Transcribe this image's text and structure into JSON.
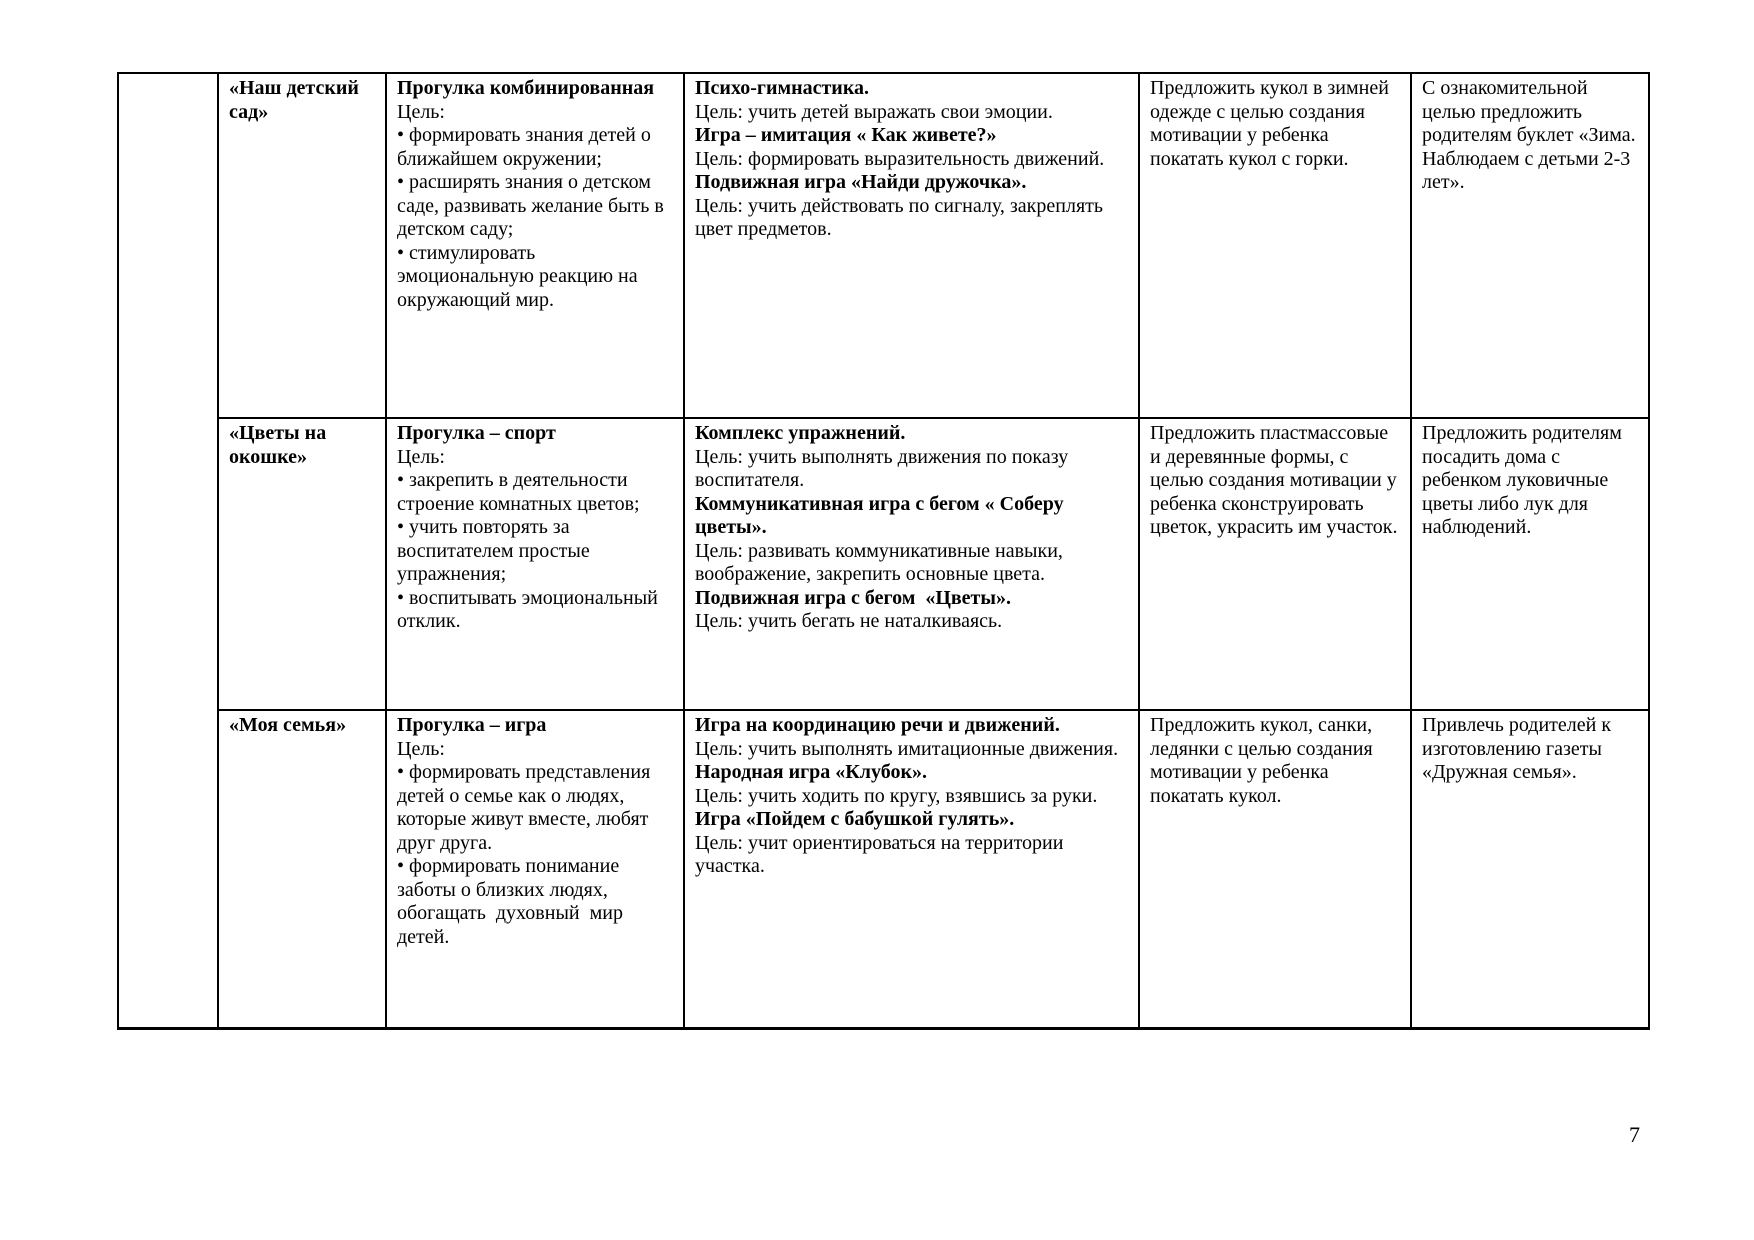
{
  "page": {
    "number": "7"
  },
  "table": {
    "rows": [
      {
        "topic": "«Наш детский сад»",
        "walk": [
          {
            "bold": true,
            "text": "Прогулка комбинированная"
          },
          {
            "bold": false,
            "text": "Цель:"
          },
          {
            "bold": false,
            "text": "• формировать знания детей о ближайшем окружении;"
          },
          {
            "bold": false,
            "text": "• расширять знания о детском саде, развивать желание быть в детском саду;"
          },
          {
            "bold": false,
            "text": "• стимулировать эмоциональную реакцию на окружающий мир."
          }
        ],
        "games": [
          {
            "bold": true,
            "text": "Психо-гимнастика."
          },
          {
            "bold": false,
            "text": "Цель: учить детей выражать свои эмоции."
          },
          {
            "bold": true,
            "text": "Игра – имитация « Как живете?»"
          },
          {
            "bold": false,
            "text": "Цель: формировать выразительность движений."
          },
          {
            "bold": true,
            "text": "Подвижная игра «Найди дружочка»."
          },
          {
            "bold": false,
            "text": "Цель: учить действовать по сигналу, закреплять цвет предметов."
          }
        ],
        "motivation": [
          {
            "bold": false,
            "text": "Предложить кукол в зимней одежде с целью создания мотивации у ребенка покатать кукол с горки."
          }
        ],
        "parents": [
          {
            "bold": false,
            "text": "С ознакомительной целью предложить родителям буклет «Зима. Наблюдаем с детьми 2-3 лет»."
          }
        ]
      },
      {
        "topic": "«Цветы на окошке»",
        "walk": [
          {
            "bold": true,
            "text": "Прогулка – спорт"
          },
          {
            "bold": false,
            "text": "Цель:"
          },
          {
            "bold": false,
            "text": "• закрепить в деятельности строение комнатных цветов;"
          },
          {
            "bold": false,
            "text": "• учить повторять за воспитателем простые упражнения;"
          },
          {
            "bold": false,
            "text": "• воспитывать эмоциональный отклик."
          }
        ],
        "games": [
          {
            "bold": true,
            "text": "Комплекс упражнений."
          },
          {
            "bold": false,
            "text": "Цель: учить выполнять движения по показу воспитателя."
          },
          {
            "bold": true,
            "text": "Коммуникативная игра с бегом « Соберу цветы»."
          },
          {
            "bold": false,
            "text": "Цель: развивать коммуникативные навыки, воображение, закрепить основные цвета."
          },
          {
            "bold": true,
            "text": "Подвижная игра с бегом  «Цветы»."
          },
          {
            "bold": false,
            "text": "Цель: учить бегать не наталкиваясь."
          }
        ],
        "motivation": [
          {
            "bold": false,
            "text": "Предложить пластмассовые и деревянные формы, с целью создания мотивации у ребенка сконструировать цветок, украсить им участок."
          }
        ],
        "parents": [
          {
            "bold": false,
            "text": "Предложить родителям посадить дома с ребенком луковичные цветы либо лук для наблюдений."
          }
        ]
      },
      {
        "topic": "«Моя семья»",
        "walk": [
          {
            "bold": true,
            "text": "Прогулка – игра"
          },
          {
            "bold": false,
            "text": "Цель:"
          },
          {
            "bold": false,
            "text": "• формировать представления детей о семье как о людях, которые живут вместе, любят друг друга."
          },
          {
            "bold": false,
            "text": "• формировать понимание заботы о близких людях, обогащать  духовный  мир детей."
          }
        ],
        "games": [
          {
            "bold": true,
            "text": "Игра на координацию речи и движений."
          },
          {
            "bold": false,
            "text": "Цель: учить выполнять имитационные движения."
          },
          {
            "bold": true,
            "text": "Народная игра «Клубок»."
          },
          {
            "bold": false,
            "text": "Цель: учить ходить по кругу, взявшись за руки."
          },
          {
            "bold": true,
            "text": "Игра «Пойдем с бабушкой гулять»."
          },
          {
            "bold": false,
            "text": "Цель: учит ориентироваться на территории участка."
          }
        ],
        "motivation": [
          {
            "bold": false,
            "text": "Предложить кукол, санки, ледянки с целью создания мотивации у ребенка покатать кукол."
          }
        ],
        "parents": [
          {
            "bold": false,
            "text": "Привлечь родителей к изготовлению газеты «Дружная семья»."
          }
        ]
      }
    ]
  }
}
